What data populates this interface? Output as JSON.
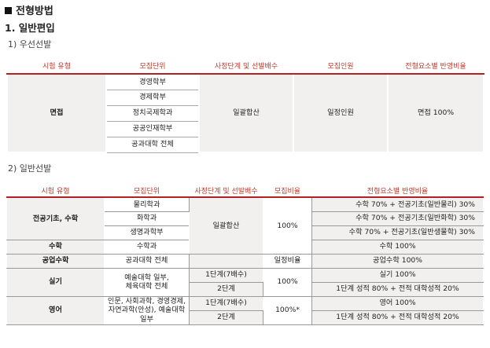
{
  "heading": "전형방법",
  "section": "1. 일반편입",
  "sub1": "1) 우선선발",
  "sub2": "2) 일반선발",
  "table1": {
    "headers": [
      "시험 유형",
      "모집단위",
      "사정단계 및 선발배수",
      "모집인원",
      "전형요소별 반영비율"
    ],
    "type": "면접",
    "units": [
      "경영학부",
      "경제학부",
      "정치국제학과",
      "공공인재학부",
      "공과대학 전체"
    ],
    "stage": "일괄합산",
    "quota": "일정인원",
    "ratio": "면접 100%"
  },
  "table2": {
    "headers": [
      "시험 유형",
      "모집단위",
      "사정단계 및 선발배수",
      "모집비율",
      "전형요소별 반영비율"
    ],
    "g1_type": "전공기초, 수학",
    "g1_units": [
      "물리학과",
      "화학과",
      "생명과학부"
    ],
    "g1_ratios": [
      "수학 70% + 전공기초(일반물리) 30%",
      "수학 70% + 전공기초(일반화학) 30%",
      "수학 70% + 전공기초(일반생물학) 30%"
    ],
    "g1_stage": "일괄합산",
    "g1_pct": "100%",
    "g2_type": "수학",
    "g2_unit": "수학과",
    "g2_ratio": "수학 100%",
    "g3_type": "공업수학",
    "g3_unit": "공과대학 전체",
    "g3_pct": "일정비율",
    "g3_ratio": "공업수학 100%",
    "g4_type": "실기",
    "g4_unit_line1": "예술대학 일부,",
    "g4_unit_line2": "체육대학 전체",
    "g4_stage1": "1단계(7배수)",
    "g4_stage2": "2단계",
    "g4_pct": "100%",
    "g4_ratio1": "실기 100%",
    "g4_ratio2": "1단계 성적 80% + 전적 대학성적 20%",
    "g5_type": "영어",
    "g5_unit_line1": "인문, 사회과학, 경영경제,",
    "g5_unit_line2": "자연과학(안성), 예술대학 일부",
    "g5_stage1": "1단계(7배수)",
    "g5_stage2": "2단계",
    "g5_pct": "100%*",
    "g5_ratio1": "영어 100%",
    "g5_ratio2": "1단계 성적 80% + 전적 대학성적 20%"
  }
}
